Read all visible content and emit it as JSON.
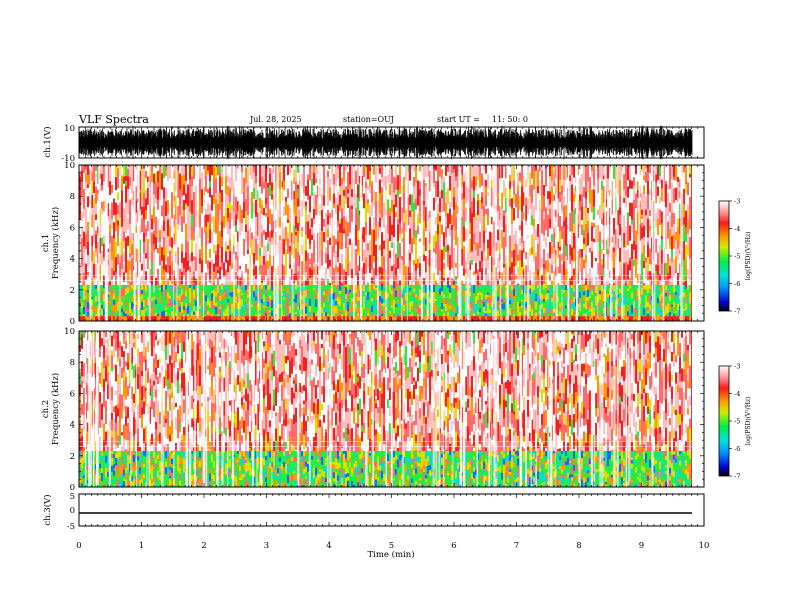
{
  "header": {
    "title": "VLF Spectra",
    "date": "Jul. 28, 2025",
    "station": "station=OUJ",
    "start_label": "start UT =",
    "start_time": "11: 50: 0"
  },
  "chart_data": [
    {
      "type": "line",
      "id": "ch1-waveform",
      "ylabel": "ch.1(V)",
      "ylim": [
        -10,
        10
      ],
      "yticks": [
        "10",
        "-10"
      ],
      "description_series": [
        {
          "name": "ch.1 amplitude envelope",
          "x": [
            0,
            9.8
          ],
          "y_range": [
            -9,
            9
          ]
        }
      ]
    },
    {
      "type": "heatmap",
      "id": "ch1-spectrogram",
      "ylabel": "ch.1\nFrequency (kHz)",
      "ylabel_line1": "ch.1",
      "ylabel_line2": "Frequency (kHz)",
      "ylim": [
        0,
        10
      ],
      "yticks": [
        "0",
        "2",
        "4",
        "6",
        "8",
        "10"
      ],
      "xlim": [
        0,
        9.8
      ],
      "dominant_band_khz": [
        0.3,
        2.3
      ],
      "colorbar": {
        "label": "log(PSD)(V²/Hz)",
        "range": [
          -7,
          -3
        ],
        "ticks": [
          "-3",
          "-4",
          "-5",
          "-6",
          "-7"
        ]
      }
    },
    {
      "type": "heatmap",
      "id": "ch2-spectrogram",
      "ylabel_line1": "ch.2",
      "ylabel_line2": "Frequency (kHz)",
      "ylim": [
        0,
        10
      ],
      "yticks": [
        "0",
        "2",
        "4",
        "6",
        "8",
        "10"
      ],
      "xlim": [
        0,
        9.8
      ],
      "dominant_band_khz": [
        0,
        2.3
      ],
      "colorbar": {
        "label": "log(PSD)(V²/Hz)",
        "range": [
          -7,
          -3
        ],
        "ticks": [
          "-3",
          "-4",
          "-5",
          "-6",
          "-7"
        ]
      }
    },
    {
      "type": "line",
      "id": "ch3-waveform",
      "ylabel": "ch.3(V)",
      "ylim": [
        -5,
        5
      ],
      "yticks": [
        "5",
        "0",
        "-5"
      ],
      "series": [
        {
          "name": "ch.3",
          "x": [
            0,
            9.8
          ],
          "y": [
            -1.2,
            -1.2
          ]
        }
      ]
    }
  ],
  "xaxis": {
    "label": "Time (min)",
    "range": [
      0,
      10
    ],
    "ticks": [
      "0",
      "1",
      "2",
      "3",
      "4",
      "5",
      "6",
      "7",
      "8",
      "9",
      "10"
    ]
  },
  "colors": {
    "background": "#ffffff",
    "axis": "#000000",
    "spec_high": "#ee2222",
    "spec_mid": "#22ee44",
    "spec_low": "#0000cc"
  }
}
